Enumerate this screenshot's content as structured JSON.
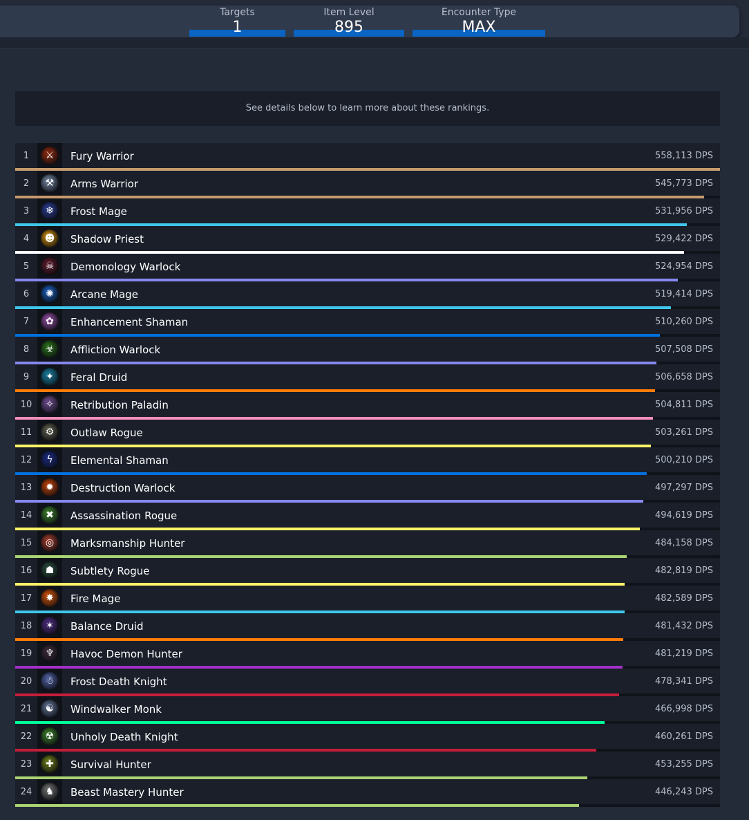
{
  "filters": [
    {
      "label": "Targets",
      "value": "1"
    },
    {
      "label": "Item Level",
      "value": "895"
    },
    {
      "label": "Encounter Type",
      "value": "MAX"
    }
  ],
  "info": {
    "text": "See details below to learn more about these rankings."
  },
  "rankings": [
    {
      "rank": "1",
      "name": "Fury Warrior",
      "dps": "558,113 DPS",
      "value": 558113,
      "color": "#c69b6d",
      "icon": "fury-warrior-icon",
      "icon_bg": "#8a2a10",
      "glyph": "⚔"
    },
    {
      "rank": "2",
      "name": "Arms Warrior",
      "dps": "545,773 DPS",
      "value": 545773,
      "color": "#c69b6d",
      "icon": "arms-warrior-icon",
      "icon_bg": "#6f7f9a",
      "glyph": "⚒"
    },
    {
      "rank": "3",
      "name": "Frost Mage",
      "dps": "531,956 DPS",
      "value": 531956,
      "color": "#3fc7eb",
      "icon": "frost-mage-icon",
      "icon_bg": "#2a3a8a",
      "glyph": "❄"
    },
    {
      "rank": "4",
      "name": "Shadow Priest",
      "dps": "529,422 DPS",
      "value": 529422,
      "color": "#ffffff",
      "icon": "shadow-priest-icon",
      "icon_bg": "#c98a10",
      "glyph": "☻"
    },
    {
      "rank": "5",
      "name": "Demonology Warlock",
      "dps": "524,954 DPS",
      "value": 524954,
      "color": "#8788ee",
      "icon": "demonology-warlock-icon",
      "icon_bg": "#5a1a2a",
      "glyph": "☠"
    },
    {
      "rank": "6",
      "name": "Arcane Mage",
      "dps": "519,414 DPS",
      "value": 519414,
      "color": "#3fc7eb",
      "icon": "arcane-mage-icon",
      "icon_bg": "#1a5ab0",
      "glyph": "✺"
    },
    {
      "rank": "7",
      "name": "Enhancement Shaman",
      "dps": "510,260 DPS",
      "value": 510260,
      "color": "#0070dd",
      "icon": "enhancement-shaman-icon",
      "icon_bg": "#8a4a9a",
      "glyph": "✿"
    },
    {
      "rank": "8",
      "name": "Affliction Warlock",
      "dps": "507,508 DPS",
      "value": 507508,
      "color": "#8788ee",
      "icon": "affliction-warlock-icon",
      "icon_bg": "#2a6a1a",
      "glyph": "☣"
    },
    {
      "rank": "9",
      "name": "Feral Druid",
      "dps": "506,658 DPS",
      "value": 506658,
      "color": "#ff7c0a",
      "icon": "feral-druid-icon",
      "icon_bg": "#1a7a9a",
      "glyph": "✦"
    },
    {
      "rank": "10",
      "name": "Retribution Paladin",
      "dps": "504,811 DPS",
      "value": 504811,
      "color": "#f48cba",
      "icon": "retribution-paladin-icon",
      "icon_bg": "#6a4a8a",
      "glyph": "✧"
    },
    {
      "rank": "11",
      "name": "Outlaw Rogue",
      "dps": "503,261 DPS",
      "value": 503261,
      "color": "#fff468",
      "icon": "outlaw-rogue-icon",
      "icon_bg": "#5a5a4a",
      "glyph": "⚙"
    },
    {
      "rank": "12",
      "name": "Elemental Shaman",
      "dps": "500,210 DPS",
      "value": 500210,
      "color": "#0070dd",
      "icon": "elemental-shaman-icon",
      "icon_bg": "#1a2a7a",
      "glyph": "ϟ"
    },
    {
      "rank": "13",
      "name": "Destruction Warlock",
      "dps": "497,297 DPS",
      "value": 497297,
      "color": "#8788ee",
      "icon": "destruction-warlock-icon",
      "icon_bg": "#b8400a",
      "glyph": "✹"
    },
    {
      "rank": "14",
      "name": "Assassination Rogue",
      "dps": "494,619 DPS",
      "value": 494619,
      "color": "#fff468",
      "icon": "assassination-rogue-icon",
      "icon_bg": "#3a7a2a",
      "glyph": "✖"
    },
    {
      "rank": "15",
      "name": "Marksmanship Hunter",
      "dps": "484,158 DPS",
      "value": 484158,
      "color": "#aad372",
      "icon": "marksmanship-hunter-icon",
      "icon_bg": "#9a3a2a",
      "glyph": "◎"
    },
    {
      "rank": "16",
      "name": "Subtlety Rogue",
      "dps": "482,819 DPS",
      "value": 482819,
      "color": "#fff468",
      "icon": "subtlety-rogue-icon",
      "icon_bg": "#2a4a3a",
      "glyph": "☗"
    },
    {
      "rank": "17",
      "name": "Fire Mage",
      "dps": "482,589 DPS",
      "value": 482589,
      "color": "#3fc7eb",
      "icon": "fire-mage-icon",
      "icon_bg": "#c8500a",
      "glyph": "✸"
    },
    {
      "rank": "18",
      "name": "Balance Druid",
      "dps": "481,432 DPS",
      "value": 481432,
      "color": "#ff7c0a",
      "icon": "balance-druid-icon",
      "icon_bg": "#4a2a7a",
      "glyph": "✶"
    },
    {
      "rank": "19",
      "name": "Havoc Demon Hunter",
      "dps": "481,219 DPS",
      "value": 481219,
      "color": "#a330c9",
      "icon": "havoc-demon-hunter-icon",
      "icon_bg": "#3a2a3a",
      "glyph": "♆"
    },
    {
      "rank": "20",
      "name": "Frost Death Knight",
      "dps": "478,341 DPS",
      "value": 478341,
      "color": "#c41e3a",
      "icon": "frost-death-knight-icon",
      "icon_bg": "#4a5a9a",
      "glyph": "☃"
    },
    {
      "rank": "21",
      "name": "Windwalker Monk",
      "dps": "466,998 DPS",
      "value": 466998,
      "color": "#00ff98",
      "icon": "windwalker-monk-icon",
      "icon_bg": "#5a6a8a",
      "glyph": "☯"
    },
    {
      "rank": "22",
      "name": "Unholy Death Knight",
      "dps": "460,261 DPS",
      "value": 460261,
      "color": "#c41e3a",
      "icon": "unholy-death-knight-icon",
      "icon_bg": "#3a7a2a",
      "glyph": "☢"
    },
    {
      "rank": "23",
      "name": "Survival Hunter",
      "dps": "453,255 DPS",
      "value": 453255,
      "color": "#aad372",
      "icon": "survival-hunter-icon",
      "icon_bg": "#6a7a1a",
      "glyph": "✚"
    },
    {
      "rank": "24",
      "name": "Beast Mastery Hunter",
      "dps": "446,243 DPS",
      "value": 446243,
      "color": "#aad372",
      "icon": "beast-mastery-hunter-icon",
      "icon_bg": "#6a6a6a",
      "glyph": "♞"
    }
  ]
}
